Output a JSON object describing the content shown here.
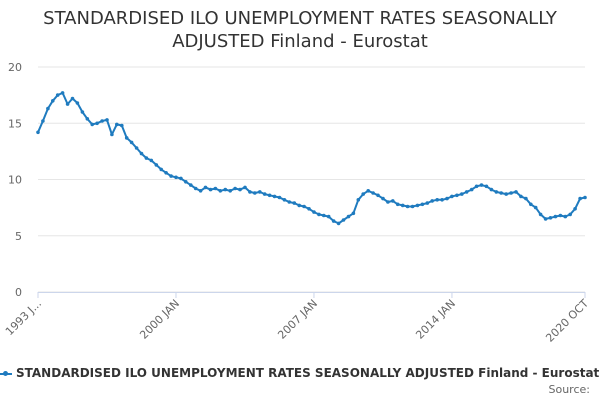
{
  "title_line1": "STANDARDISED ILO UNEMPLOYMENT RATES SEASONALLY",
  "title_line2": "ADJUSTED Finland - Eurostat",
  "legend_label": "STANDARDISED ILO UNEMPLOYMENT RATES SEASONALLY ADJUSTED Finland - Eurostat",
  "source_label": "Source:",
  "colors": {
    "series": "#1f7bbf",
    "grid": "#e6e6e6",
    "axis_text": "#666666"
  },
  "chart_data": {
    "type": "line",
    "title": "STANDARDISED ILO UNEMPLOYMENT RATES SEASONALLY ADJUSTED Finland - Eurostat",
    "ylim": [
      0,
      20
    ],
    "yticks": [
      0,
      5,
      10,
      15,
      20
    ],
    "x_range": [
      "1993-01",
      "2020-10"
    ],
    "xticks": [
      {
        "date": "1993-01",
        "label": "1993 J..."
      },
      {
        "date": "2000-01",
        "label": "2000 JAN"
      },
      {
        "date": "2007-01",
        "label": "2007 JAN"
      },
      {
        "date": "2014-01",
        "label": "2014 JAN"
      },
      {
        "date": "2020-10",
        "label": "2020 OCT"
      }
    ],
    "grid": true,
    "series": [
      {
        "name": "STANDARDISED ILO UNEMPLOYMENT RATES SEASONALLY ADJUSTED Finland - Eurostat",
        "points": [
          [
            "1993-01",
            14.2
          ],
          [
            "1993-04",
            15.2
          ],
          [
            "1993-07",
            16.3
          ],
          [
            "1993-10",
            17.0
          ],
          [
            "1994-01",
            17.5
          ],
          [
            "1994-04",
            17.7
          ],
          [
            "1994-07",
            16.7
          ],
          [
            "1994-10",
            17.2
          ],
          [
            "1995-01",
            16.8
          ],
          [
            "1995-04",
            16.0
          ],
          [
            "1995-07",
            15.4
          ],
          [
            "1995-10",
            14.9
          ],
          [
            "1996-01",
            15.0
          ],
          [
            "1996-04",
            15.2
          ],
          [
            "1996-07",
            15.3
          ],
          [
            "1996-10",
            14.0
          ],
          [
            "1997-01",
            14.9
          ],
          [
            "1997-04",
            14.8
          ],
          [
            "1997-07",
            13.7
          ],
          [
            "1997-10",
            13.3
          ],
          [
            "1998-01",
            12.8
          ],
          [
            "1998-04",
            12.3
          ],
          [
            "1998-07",
            11.9
          ],
          [
            "1998-10",
            11.7
          ],
          [
            "1999-01",
            11.3
          ],
          [
            "1999-04",
            10.9
          ],
          [
            "1999-07",
            10.6
          ],
          [
            "1999-10",
            10.3
          ],
          [
            "2000-01",
            10.2
          ],
          [
            "2000-04",
            10.1
          ],
          [
            "2000-07",
            9.8
          ],
          [
            "2000-10",
            9.5
          ],
          [
            "2001-01",
            9.2
          ],
          [
            "2001-04",
            9.0
          ],
          [
            "2001-07",
            9.3
          ],
          [
            "2001-10",
            9.1
          ],
          [
            "2002-01",
            9.2
          ],
          [
            "2002-04",
            9.0
          ],
          [
            "2002-07",
            9.1
          ],
          [
            "2002-10",
            9.0
          ],
          [
            "2003-01",
            9.2
          ],
          [
            "2003-04",
            9.1
          ],
          [
            "2003-07",
            9.3
          ],
          [
            "2003-10",
            8.9
          ],
          [
            "2004-01",
            8.8
          ],
          [
            "2004-04",
            8.9
          ],
          [
            "2004-07",
            8.7
          ],
          [
            "2004-10",
            8.6
          ],
          [
            "2005-01",
            8.5
          ],
          [
            "2005-04",
            8.4
          ],
          [
            "2005-07",
            8.2
          ],
          [
            "2005-10",
            8.0
          ],
          [
            "2006-01",
            7.9
          ],
          [
            "2006-04",
            7.7
          ],
          [
            "2006-07",
            7.6
          ],
          [
            "2006-10",
            7.4
          ],
          [
            "2007-01",
            7.1
          ],
          [
            "2007-04",
            6.9
          ],
          [
            "2007-07",
            6.8
          ],
          [
            "2007-10",
            6.7
          ],
          [
            "2008-01",
            6.3
          ],
          [
            "2008-04",
            6.1
          ],
          [
            "2008-07",
            6.4
          ],
          [
            "2008-10",
            6.7
          ],
          [
            "2009-01",
            7.0
          ],
          [
            "2009-04",
            8.2
          ],
          [
            "2009-07",
            8.7
          ],
          [
            "2009-10",
            9.0
          ],
          [
            "2010-01",
            8.8
          ],
          [
            "2010-04",
            8.6
          ],
          [
            "2010-07",
            8.3
          ],
          [
            "2010-10",
            8.0
          ],
          [
            "2011-01",
            8.1
          ],
          [
            "2011-04",
            7.8
          ],
          [
            "2011-07",
            7.7
          ],
          [
            "2011-10",
            7.6
          ],
          [
            "2012-01",
            7.6
          ],
          [
            "2012-04",
            7.7
          ],
          [
            "2012-07",
            7.8
          ],
          [
            "2012-10",
            7.9
          ],
          [
            "2013-01",
            8.1
          ],
          [
            "2013-04",
            8.2
          ],
          [
            "2013-07",
            8.2
          ],
          [
            "2013-10",
            8.3
          ],
          [
            "2014-01",
            8.5
          ],
          [
            "2014-04",
            8.6
          ],
          [
            "2014-07",
            8.7
          ],
          [
            "2014-10",
            8.9
          ],
          [
            "2015-01",
            9.1
          ],
          [
            "2015-04",
            9.4
          ],
          [
            "2015-07",
            9.5
          ],
          [
            "2015-10",
            9.4
          ],
          [
            "2016-01",
            9.1
          ],
          [
            "2016-04",
            8.9
          ],
          [
            "2016-07",
            8.8
          ],
          [
            "2016-10",
            8.7
          ],
          [
            "2017-01",
            8.8
          ],
          [
            "2017-04",
            8.9
          ],
          [
            "2017-07",
            8.5
          ],
          [
            "2017-10",
            8.3
          ],
          [
            "2018-01",
            7.8
          ],
          [
            "2018-04",
            7.5
          ],
          [
            "2018-07",
            6.9
          ],
          [
            "2018-10",
            6.5
          ],
          [
            "2019-01",
            6.6
          ],
          [
            "2019-04",
            6.7
          ],
          [
            "2019-07",
            6.8
          ],
          [
            "2019-10",
            6.7
          ],
          [
            "2020-01",
            6.9
          ],
          [
            "2020-04",
            7.4
          ],
          [
            "2020-07",
            8.3
          ],
          [
            "2020-10",
            8.4
          ]
        ]
      }
    ]
  }
}
